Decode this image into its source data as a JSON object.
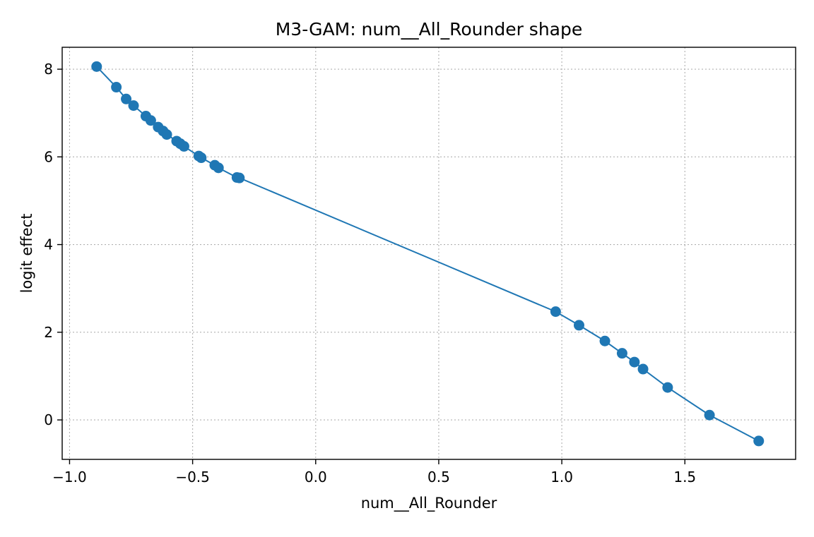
{
  "chart_data": {
    "type": "line",
    "title": "M3-GAM: num__All_Rounder shape",
    "xlabel": "num__All_Rounder",
    "ylabel": "logit effect",
    "xlim": [
      -1.03,
      1.95
    ],
    "ylim": [
      -0.9,
      8.5
    ],
    "xticks": [
      -1.0,
      -0.5,
      0.0,
      0.5,
      1.0,
      1.5
    ],
    "xtick_labels": [
      "−1.0",
      "−0.5",
      "0.0",
      "0.5",
      "1.0",
      "1.5"
    ],
    "yticks": [
      0,
      2,
      4,
      6,
      8
    ],
    "ytick_labels": [
      "0",
      "2",
      "4",
      "6",
      "8"
    ],
    "grid": true,
    "grid_style": "dotted",
    "marker": "circle",
    "series": [
      {
        "color": "#1f77b4",
        "x": [
          -0.89,
          -0.81,
          -0.77,
          -0.74,
          -0.69,
          -0.67,
          -0.64,
          -0.62,
          -0.605,
          -0.565,
          -0.55,
          -0.535,
          -0.475,
          -0.465,
          -0.41,
          -0.395,
          -0.32,
          -0.31,
          0.975,
          1.07,
          1.175,
          1.245,
          1.295,
          1.33,
          1.43,
          1.6,
          1.8
        ],
        "y": [
          8.06,
          7.59,
          7.32,
          7.17,
          6.93,
          6.83,
          6.68,
          6.59,
          6.51,
          6.36,
          6.3,
          6.24,
          6.02,
          5.98,
          5.81,
          5.75,
          5.53,
          5.52,
          2.47,
          2.16,
          1.8,
          1.52,
          1.32,
          1.16,
          0.74,
          0.11,
          -0.48
        ]
      }
    ]
  }
}
